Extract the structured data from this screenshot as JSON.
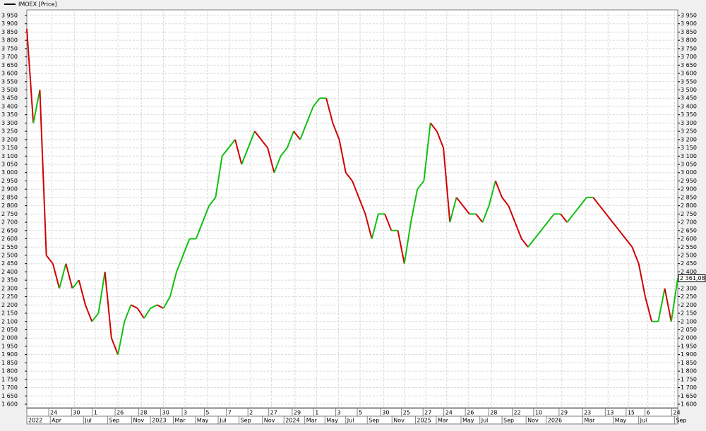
{
  "chart_data": {
    "type": "line",
    "legend": "IMOEX [Price]",
    "up_color": "#10c010",
    "down_color": "#d00000",
    "grid": true,
    "series": [
      {
        "name": "IMOEX [Price]",
        "values": [
          3870,
          3300,
          3500,
          2500,
          2450,
          2300,
          2450,
          2300,
          2350,
          2200,
          2100,
          2150,
          2400,
          2000,
          1900,
          2100,
          2200,
          2180,
          2120,
          2180,
          2200,
          2180,
          2250,
          2400,
          2500,
          2600,
          2600,
          2700,
          2800,
          2850,
          3100,
          3150,
          3200,
          3050,
          3150,
          3250,
          3200,
          3150,
          3000,
          3100,
          3150,
          3250,
          3200,
          3300,
          3400,
          3450,
          3450,
          3300,
          3200,
          3000,
          2950,
          2850,
          2750,
          2600,
          2750,
          2750,
          2650,
          2650,
          2450,
          2700,
          2900,
          2950,
          3300,
          3250,
          3150,
          2700,
          2850,
          2800,
          2750,
          2750,
          2700,
          2800,
          2950,
          2850,
          2800,
          2700,
          2600,
          2550,
          2600,
          2650,
          2700,
          2750,
          2750,
          2700,
          2750,
          2800,
          2850,
          2850,
          2800,
          2750,
          2700,
          2650,
          2600,
          2550,
          2450,
          2250,
          2100,
          2100,
          2300,
          2100,
          2361.08
        ]
      }
    ],
    "last_value": {
      "value": 2361.08,
      "label": "2 361,08"
    },
    "xlim": [
      0,
      100
    ],
    "ylim": [
      1600,
      3950
    ],
    "yticks": [
      {
        "value": 1600,
        "label": "1 600"
      },
      {
        "value": 1650,
        "label": "1 650"
      },
      {
        "value": 1700,
        "label": "1 700"
      },
      {
        "value": 1750,
        "label": "1 750"
      },
      {
        "value": 1800,
        "label": "1 800"
      },
      {
        "value": 1850,
        "label": "1 850"
      },
      {
        "value": 1900,
        "label": "1 900"
      },
      {
        "value": 1950,
        "label": "1 950"
      },
      {
        "value": 2000,
        "label": "2 000"
      },
      {
        "value": 2050,
        "label": "2 050"
      },
      {
        "value": 2100,
        "label": "2 100"
      },
      {
        "value": 2150,
        "label": "2 150"
      },
      {
        "value": 2200,
        "label": "2 200"
      },
      {
        "value": 2250,
        "label": "2 250"
      },
      {
        "value": 2300,
        "label": "2 300"
      },
      {
        "value": 2350,
        "label": "2 350"
      },
      {
        "value": 2400,
        "label": "2 400"
      },
      {
        "value": 2450,
        "label": "2 450"
      },
      {
        "value": 2500,
        "label": "2 500"
      },
      {
        "value": 2550,
        "label": "2 550"
      },
      {
        "value": 2600,
        "label": "2 600"
      },
      {
        "value": 2650,
        "label": "2 650"
      },
      {
        "value": 2700,
        "label": "2 700"
      },
      {
        "value": 2750,
        "label": "2 750"
      },
      {
        "value": 2800,
        "label": "2 800"
      },
      {
        "value": 2850,
        "label": "2 850"
      },
      {
        "value": 2900,
        "label": "2 900"
      },
      {
        "value": 2950,
        "label": "2 950"
      },
      {
        "value": 3000,
        "label": "3 000"
      },
      {
        "value": 3050,
        "label": "3 050"
      },
      {
        "value": 3100,
        "label": "3 100"
      },
      {
        "value": 3150,
        "label": "3 150"
      },
      {
        "value": 3200,
        "label": "3 200"
      },
      {
        "value": 3250,
        "label": "3 250"
      },
      {
        "value": 3300,
        "label": "3 300"
      },
      {
        "value": 3350,
        "label": "3 350"
      },
      {
        "value": 3400,
        "label": "3 400"
      },
      {
        "value": 3450,
        "label": "3 450"
      },
      {
        "value": 3500,
        "label": "3 500"
      },
      {
        "value": 3550,
        "label": "3 550"
      },
      {
        "value": 3600,
        "label": "3 600"
      },
      {
        "value": 3650,
        "label": "3 650"
      },
      {
        "value": 3700,
        "label": "3 700"
      },
      {
        "value": 3750,
        "label": "3 750"
      },
      {
        "value": 3800,
        "label": "3 800"
      },
      {
        "value": 3850,
        "label": "3 850"
      },
      {
        "value": 3900,
        "label": "3 900"
      },
      {
        "value": 3950,
        "label": "3 950"
      }
    ],
    "xticks": [
      {
        "value": 3.8,
        "label": "24"
      },
      {
        "value": 7.3,
        "label": "30"
      },
      {
        "value": 10.5,
        "label": "1"
      },
      {
        "value": 14,
        "label": "26"
      },
      {
        "value": 17.6,
        "label": "28"
      },
      {
        "value": 21,
        "label": "30"
      },
      {
        "value": 24.3,
        "label": "3"
      },
      {
        "value": 27.7,
        "label": "5"
      },
      {
        "value": 31.1,
        "label": "7"
      },
      {
        "value": 34.4,
        "label": "2"
      },
      {
        "value": 37.6,
        "label": "27"
      },
      {
        "value": 41.2,
        "label": "29"
      },
      {
        "value": 44.5,
        "label": "1"
      },
      {
        "value": 47.9,
        "label": "3"
      },
      {
        "value": 51.2,
        "label": "5"
      },
      {
        "value": 54.8,
        "label": "30"
      },
      {
        "value": 58,
        "label": "25"
      },
      {
        "value": 61.3,
        "label": "27"
      },
      {
        "value": 64.5,
        "label": "24"
      },
      {
        "value": 67.8,
        "label": "26"
      },
      {
        "value": 71.4,
        "label": "28"
      },
      {
        "value": 75,
        "label": "22"
      },
      {
        "value": 78.3,
        "label": "10"
      },
      {
        "value": 82.2,
        "label": "29"
      },
      {
        "value": 85.8,
        "label": "23"
      },
      {
        "value": 89.3,
        "label": "13"
      },
      {
        "value": 92.5,
        "label": "15"
      },
      {
        "value": 95.4,
        "label": "6"
      },
      {
        "value": 99.5,
        "label": "24"
      }
    ],
    "xticks_month": [
      {
        "value": 0,
        "label": "2022"
      },
      {
        "value": 3.6,
        "label": "Apr"
      },
      {
        "value": 8.7,
        "label": "Jul"
      },
      {
        "value": 12.4,
        "label": "Sep"
      },
      {
        "value": 16.1,
        "label": "Nov"
      },
      {
        "value": 19,
        "label": "2023"
      },
      {
        "value": 22.5,
        "label": "Mar"
      },
      {
        "value": 25.9,
        "label": "May"
      },
      {
        "value": 29.4,
        "label": "Jul"
      },
      {
        "value": 32.6,
        "label": "Sep"
      },
      {
        "value": 36.2,
        "label": "Nov"
      },
      {
        "value": 39.5,
        "label": "2024"
      },
      {
        "value": 42.7,
        "label": "Mar"
      },
      {
        "value": 45.8,
        "label": "May"
      },
      {
        "value": 49,
        "label": "Jul"
      },
      {
        "value": 52.3,
        "label": "Sep"
      },
      {
        "value": 56.1,
        "label": "Nov"
      },
      {
        "value": 59.7,
        "label": "2025"
      },
      {
        "value": 62.9,
        "label": "Mar"
      },
      {
        "value": 66.7,
        "label": "May"
      },
      {
        "value": 69.6,
        "label": "Jul"
      },
      {
        "value": 73,
        "label": "Sep"
      },
      {
        "value": 76.7,
        "label": "Nov"
      },
      {
        "value": 79.8,
        "label": "2026"
      },
      {
        "value": 85.4,
        "label": "Mar"
      },
      {
        "value": 90.1,
        "label": "May"
      },
      {
        "value": 94,
        "label": "Jul"
      },
      {
        "value": 99.5,
        "label": "Sep"
      }
    ]
  }
}
